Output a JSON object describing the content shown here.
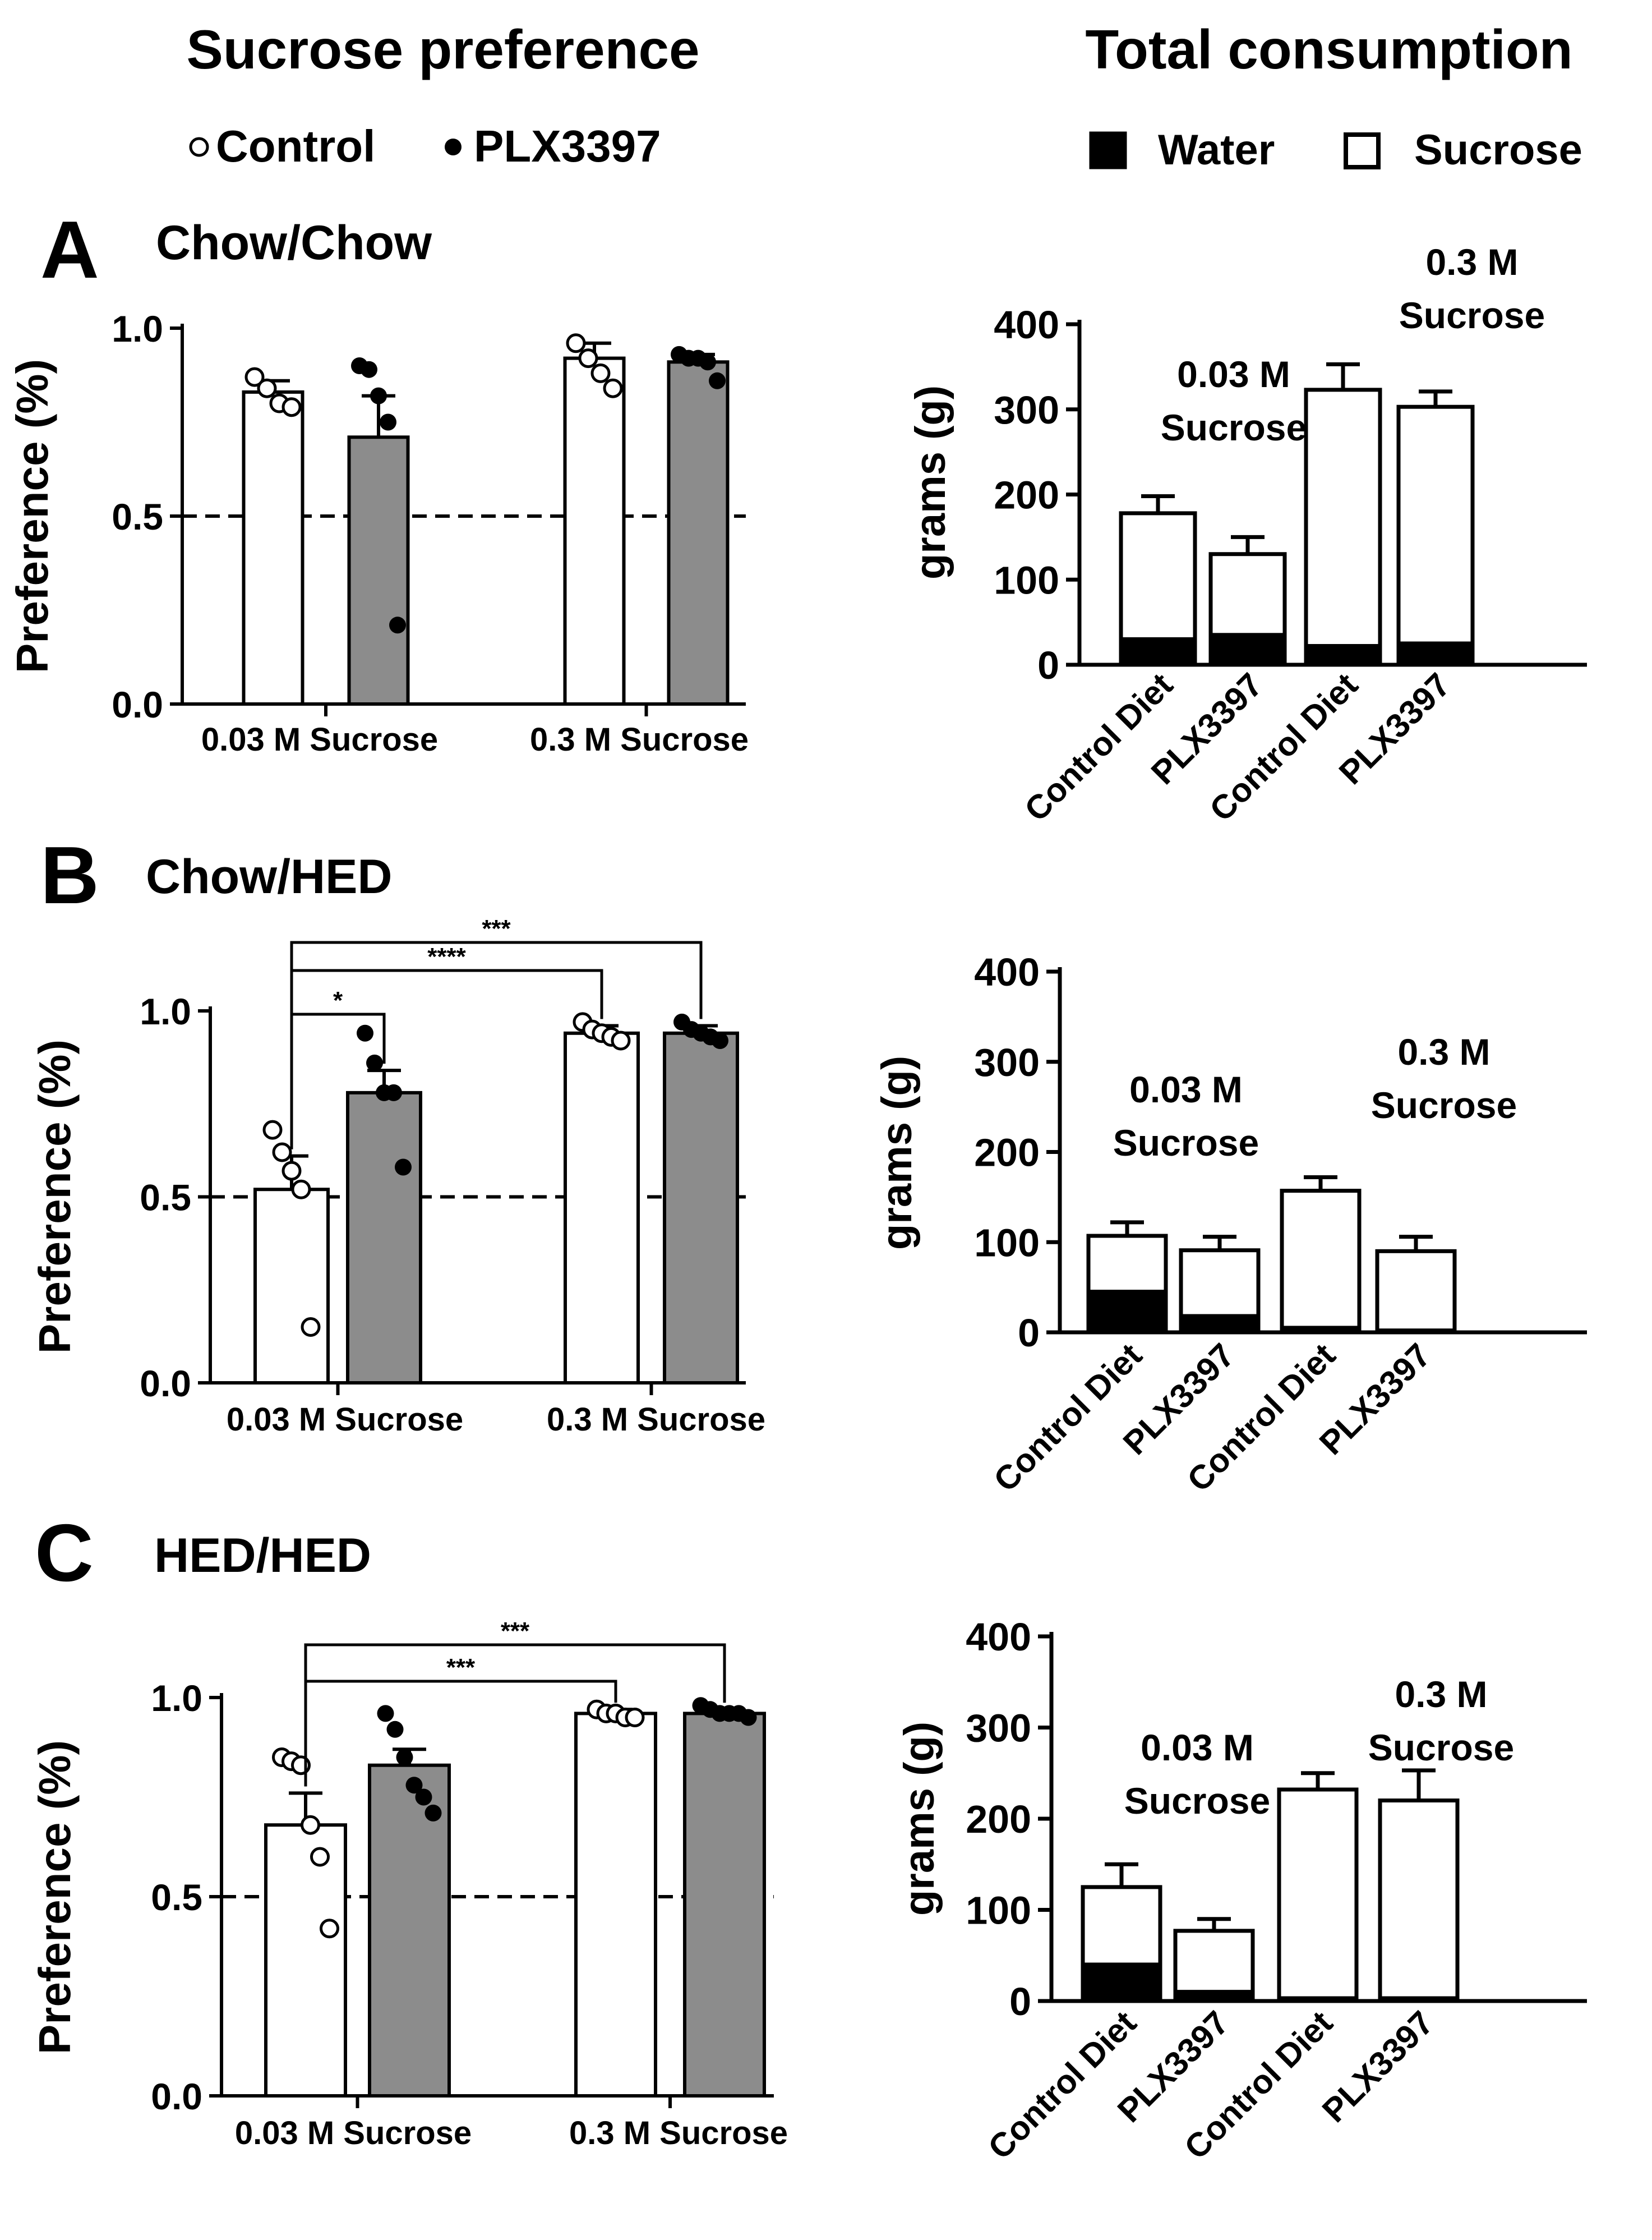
{
  "headers": {
    "left": "Sucrose preference",
    "right": "Total consumption"
  },
  "legend_pref": [
    {
      "label": "Control",
      "marker": "open"
    },
    {
      "label": "PLX3397",
      "marker": "filled"
    }
  ],
  "legend_cons": [
    {
      "label": "Water",
      "swatch": "#000000"
    },
    {
      "label": "Sucrose",
      "swatch": "#ffffff"
    }
  ],
  "colors": {
    "ink": "#000000",
    "control_bar": "#ffffff",
    "plx_bar": "#8c8c8c",
    "water": "#000000",
    "sucrose": "#ffffff"
  },
  "chart_data": [
    {
      "id": "A-pref",
      "panel": "A",
      "condition": "Chow/Chow",
      "type": "bar",
      "ylabel": "Preference (%)",
      "ylim": [
        0,
        1
      ],
      "yticks": [
        "0.0",
        "0.5",
        "1.0"
      ],
      "ytick_values": [
        0,
        0.5,
        1
      ],
      "reference_line": 0.5,
      "groups": [
        "0.03 M Sucrose",
        "0.3 M Sucrose"
      ],
      "series": [
        {
          "name": "Control",
          "values": [
            0.83,
            0.92
          ],
          "sem": [
            0.03,
            0.04
          ],
          "points": [
            [
              0.87,
              0.84,
              0.8,
              0.79
            ],
            [
              0.96,
              0.92,
              0.88,
              0.84
            ]
          ]
        },
        {
          "name": "PLX3397",
          "values": [
            0.71,
            0.91
          ],
          "sem": [
            0.11,
            0.02
          ],
          "points": [
            [
              0.9,
              0.89,
              0.82,
              0.75,
              0.21
            ],
            [
              0.93,
              0.92,
              0.92,
              0.91,
              0.86
            ]
          ]
        }
      ],
      "significance": []
    },
    {
      "id": "A-cons",
      "panel": "A",
      "type": "stacked-bar",
      "ylabel": "grams (g)",
      "ylim": [
        0,
        400
      ],
      "yticks": [
        "0",
        "100",
        "200",
        "300",
        "400"
      ],
      "ytick_values": [
        0,
        100,
        200,
        300,
        400
      ],
      "categories": [
        "Control Diet",
        "PLX3397",
        "Control Diet",
        "PLX3397"
      ],
      "group_labels": [
        [
          "0.03 M",
          "Sucrose"
        ],
        [
          "0.3 M",
          "Sucrose"
        ]
      ],
      "series": [
        {
          "name": "Water",
          "values": [
            30,
            35,
            22,
            25
          ]
        },
        {
          "name": "Sucrose",
          "values": [
            148,
            95,
            301,
            278
          ]
        }
      ],
      "totals": [
        178,
        130,
        323,
        303
      ],
      "sem": [
        20,
        20,
        30,
        18
      ]
    },
    {
      "id": "B-pref",
      "panel": "B",
      "condition": "Chow/HED",
      "type": "bar",
      "ylabel": "Preference (%)",
      "ylim": [
        0,
        1
      ],
      "yticks": [
        "0.0",
        "0.5",
        "1.0"
      ],
      "ytick_values": [
        0,
        0.5,
        1
      ],
      "reference_line": 0.5,
      "groups": [
        "0.03 M Sucrose",
        "0.3 M Sucrose"
      ],
      "series": [
        {
          "name": "Control",
          "values": [
            0.52,
            0.94
          ],
          "sem": [
            0.09,
            0.02
          ],
          "points": [
            [
              0.68,
              0.62,
              0.57,
              0.52,
              0.15
            ],
            [
              0.97,
              0.95,
              0.94,
              0.93,
              0.92
            ]
          ]
        },
        {
          "name": "PLX3397",
          "values": [
            0.78,
            0.94
          ],
          "sem": [
            0.06,
            0.02
          ],
          "points": [
            [
              0.94,
              0.86,
              0.78,
              0.78,
              0.58
            ],
            [
              0.97,
              0.95,
              0.94,
              0.93,
              0.92
            ]
          ]
        }
      ],
      "significance": [
        {
          "label": "*",
          "from": [
            0,
            0
          ],
          "to": [
            0,
            1
          ]
        },
        {
          "label": "****",
          "from": [
            0,
            0
          ],
          "to": [
            1,
            0
          ]
        },
        {
          "label": "***",
          "from": [
            0,
            0
          ],
          "to": [
            1,
            1
          ]
        }
      ]
    },
    {
      "id": "B-cons",
      "panel": "B",
      "type": "stacked-bar",
      "ylabel": "grams (g)",
      "ylim": [
        0,
        400
      ],
      "yticks": [
        "0",
        "100",
        "200",
        "300",
        "400"
      ],
      "ytick_values": [
        0,
        100,
        200,
        300,
        400
      ],
      "categories": [
        "Control Diet",
        "PLX3397",
        "Control Diet",
        "PLX3397"
      ],
      "group_labels": [
        [
          "0.03 M",
          "Sucrose"
        ],
        [
          "0.3 M",
          "Sucrose"
        ]
      ],
      "series": [
        {
          "name": "Water",
          "values": [
            45,
            18,
            5,
            2
          ]
        },
        {
          "name": "Sucrose",
          "values": [
            62,
            73,
            152,
            88
          ]
        }
      ],
      "totals": [
        107,
        91,
        157,
        90
      ],
      "sem": [
        15,
        15,
        15,
        16
      ]
    },
    {
      "id": "C-pref",
      "panel": "C",
      "condition": "HED/HED",
      "type": "bar",
      "ylabel": "Preference (%)",
      "ylim": [
        0,
        1
      ],
      "yticks": [
        "0.0",
        "0.5",
        "1.0"
      ],
      "ytick_values": [
        0,
        0.5,
        1
      ],
      "reference_line": 0.5,
      "groups": [
        "0.03 M Sucrose",
        "0.3 M Sucrose"
      ],
      "series": [
        {
          "name": "Control",
          "values": [
            0.68,
            0.96
          ],
          "sem": [
            0.08,
            0.01
          ],
          "points": [
            [
              0.85,
              0.84,
              0.83,
              0.68,
              0.6,
              0.42
            ],
            [
              0.97,
              0.96,
              0.96,
              0.95,
              0.95
            ]
          ]
        },
        {
          "name": "PLX3397",
          "values": [
            0.83,
            0.96
          ],
          "sem": [
            0.04,
            0.01
          ],
          "points": [
            [
              0.96,
              0.92,
              0.85,
              0.78,
              0.75,
              0.71
            ],
            [
              0.98,
              0.97,
              0.96,
              0.96,
              0.96,
              0.95
            ]
          ]
        }
      ],
      "significance": [
        {
          "label": "***",
          "from": [
            0,
            0
          ],
          "to": [
            1,
            0
          ]
        },
        {
          "label": "***",
          "from": [
            0,
            0
          ],
          "to": [
            1,
            1
          ]
        }
      ]
    },
    {
      "id": "C-cons",
      "panel": "C",
      "type": "stacked-bar",
      "ylabel": "grams (g)",
      "ylim": [
        0,
        400
      ],
      "yticks": [
        "0",
        "100",
        "200",
        "300",
        "400"
      ],
      "ytick_values": [
        0,
        100,
        200,
        300,
        400
      ],
      "categories": [
        "Control Diet",
        "PLX3397",
        "Control Diet",
        "PLX3397"
      ],
      "group_labels": [
        [
          "0.03 M",
          "Sucrose"
        ],
        [
          "0.3 M",
          "Sucrose"
        ]
      ],
      "series": [
        {
          "name": "Water",
          "values": [
            40,
            10,
            3,
            3
          ]
        },
        {
          "name": "Sucrose",
          "values": [
            85,
            67,
            229,
            217
          ]
        }
      ],
      "totals": [
        125,
        77,
        232,
        220
      ],
      "sem": [
        25,
        13,
        18,
        33
      ]
    }
  ]
}
